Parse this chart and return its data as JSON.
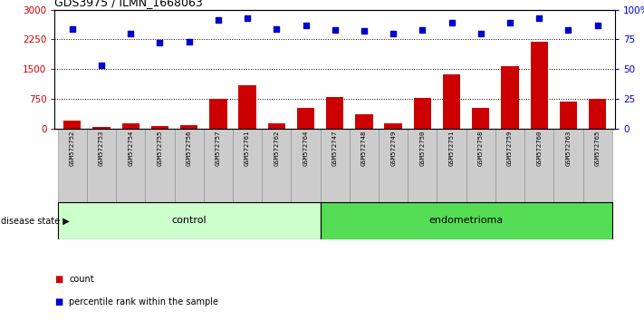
{
  "title": "GDS3975 / ILMN_1668063",
  "samples": [
    "GSM572752",
    "GSM572753",
    "GSM572754",
    "GSM572755",
    "GSM572756",
    "GSM572757",
    "GSM572761",
    "GSM572762",
    "GSM572764",
    "GSM572747",
    "GSM572748",
    "GSM572749",
    "GSM572750",
    "GSM572751",
    "GSM572758",
    "GSM572759",
    "GSM572760",
    "GSM572763",
    "GSM572765"
  ],
  "counts": [
    200,
    30,
    120,
    50,
    80,
    750,
    1100,
    130,
    520,
    800,
    350,
    130,
    780,
    1370,
    520,
    1580,
    2180,
    680,
    750
  ],
  "percentiles": [
    84,
    53,
    80,
    72,
    73,
    91,
    93,
    84,
    87,
    83,
    82,
    80,
    83,
    89,
    80,
    89,
    93,
    83,
    87
  ],
  "control_count": 9,
  "endometrioma_count": 10,
  "ylim_left": [
    0,
    3000
  ],
  "ylim_right": [
    0,
    100
  ],
  "yticks_left": [
    0,
    750,
    1500,
    2250,
    3000
  ],
  "yticks_right": [
    0,
    25,
    50,
    75,
    100
  ],
  "ytick_labels_left": [
    "0",
    "750",
    "1500",
    "2250",
    "3000"
  ],
  "ytick_labels_right": [
    "0",
    "25",
    "50",
    "75",
    "100%"
  ],
  "bar_color": "#cc0000",
  "dot_color": "#0000cc",
  "control_color": "#ccffcc",
  "endometrioma_color": "#55dd55",
  "disease_state_label": "disease state",
  "control_label": "control",
  "endometrioma_label": "endometrioma",
  "legend_count_label": "count",
  "legend_percentile_label": "percentile rank within the sample",
  "tick_bg_color": "#cccccc",
  "bg_color": "#ffffff"
}
